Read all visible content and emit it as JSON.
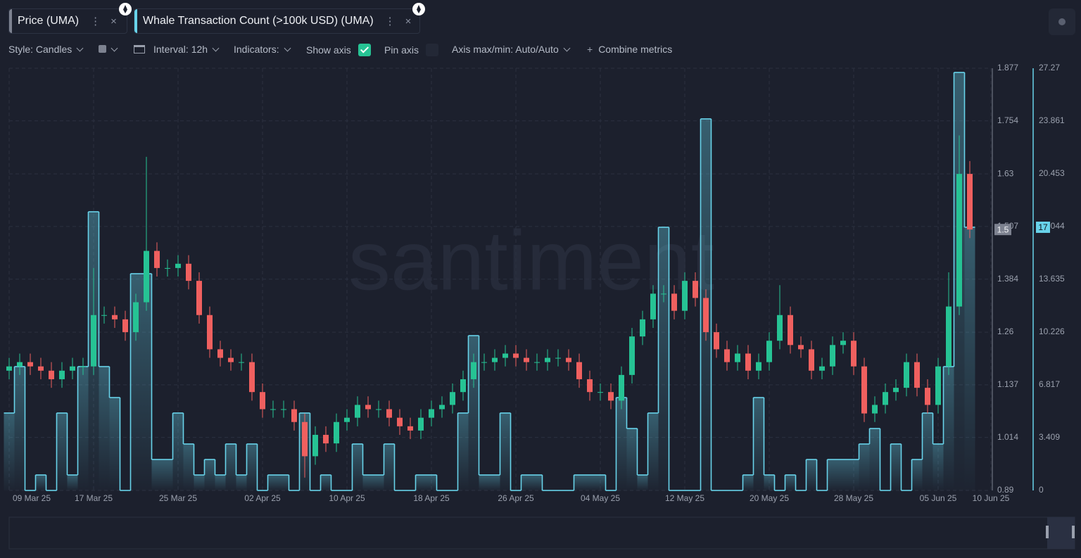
{
  "toolbar": {
    "style": "Style: Candles",
    "interval": "Interval: 12h",
    "indicators": "Indicators:",
    "show_axis": "Show axis",
    "pin_axis": "Pin axis",
    "axis_maxmin": "Axis max/min: Auto/Auto",
    "combine": "Combine metrics"
  },
  "watermark": "santiment",
  "chart_data": {
    "type": "candlestick",
    "x": [
      "09 Mar 25",
      "10 Mar 25",
      "11 Mar 25",
      "12 Mar 25",
      "13 Mar 25",
      "14 Mar 25",
      "15 Mar 25",
      "16 Mar 25",
      "17 Mar 25",
      "18 Mar 25",
      "19 Mar 25",
      "20 Mar 25",
      "21 Mar 25",
      "22 Mar 25",
      "23 Mar 25",
      "24 Mar 25",
      "25 Mar 25",
      "26 Mar 25",
      "27 Mar 25",
      "28 Mar 25",
      "29 Mar 25",
      "30 Mar 25",
      "31 Mar 25",
      "01 Apr 25",
      "02 Apr 25",
      "03 Apr 25",
      "04 Apr 25",
      "05 Apr 25",
      "06 Apr 25",
      "07 Apr 25",
      "08 Apr 25",
      "09 Apr 25",
      "10 Apr 25",
      "11 Apr 25",
      "12 Apr 25",
      "13 Apr 25",
      "14 Apr 25",
      "15 Apr 25",
      "16 Apr 25",
      "17 Apr 25",
      "18 Apr 25",
      "19 Apr 25",
      "20 Apr 25",
      "21 Apr 25",
      "22 Apr 25",
      "23 Apr 25",
      "24 Apr 25",
      "25 Apr 25",
      "26 Apr 25",
      "27 Apr 25",
      "28 Apr 25",
      "29 Apr 25",
      "30 Apr 25",
      "01 May 25",
      "02 May 25",
      "03 May 25",
      "04 May 25",
      "05 May 25",
      "06 May 25",
      "07 May 25",
      "08 May 25",
      "09 May 25",
      "10 May 25",
      "11 May 25",
      "12 May 25",
      "13 May 25",
      "14 May 25",
      "15 May 25",
      "16 May 25",
      "17 May 25",
      "18 May 25",
      "19 May 25",
      "20 May 25",
      "21 May 25",
      "22 May 25",
      "23 May 25",
      "24 May 25",
      "25 May 25",
      "26 May 25",
      "27 May 25",
      "28 May 25",
      "29 May 25",
      "30 May 25",
      "31 May 25",
      "01 Jun 25",
      "02 Jun 25",
      "03 Jun 25",
      "04 Jun 25",
      "05 Jun 25",
      "06 Jun 25",
      "07 Jun 25",
      "08 Jun 25"
    ],
    "xlim": [
      "09 Mar 25",
      "10 Jun 25"
    ],
    "xticks": [
      "09 Mar 25",
      "17 Mar 25",
      "25 Mar 25",
      "02 Apr 25",
      "10 Apr 25",
      "18 Apr 25",
      "26 Apr 25",
      "04 May 25",
      "12 May 25",
      "20 May 25",
      "28 May 25",
      "05 Jun 25",
      "10 Jun 25"
    ],
    "ylim": [
      0.89,
      1.877
    ],
    "yticks": [
      0.89,
      1.014,
      1.137,
      1.26,
      1.384,
      1.507,
      1.63,
      1.754,
      1.877
    ],
    "y2lim": [
      0,
      27.27
    ],
    "y2ticks": [
      0,
      3.409,
      6.817,
      10.226,
      13.635,
      17.044,
      20.453,
      23.861,
      27.27
    ],
    "grid": true,
    "series": [
      {
        "name": "Price (UMA)",
        "type": "candlestick",
        "color": "#7d8290",
        "up_color": "#26c394",
        "down_color": "#f0605f",
        "last_label": 1.5,
        "open": [
          1.17,
          1.18,
          1.19,
          1.18,
          1.17,
          1.15,
          1.17,
          1.18,
          1.18,
          1.3,
          1.3,
          1.29,
          1.26,
          1.33,
          1.45,
          1.41,
          1.41,
          1.42,
          1.38,
          1.3,
          1.22,
          1.2,
          1.19,
          1.19,
          1.12,
          1.08,
          1.08,
          1.08,
          1.05,
          0.97,
          1.02,
          1.0,
          1.05,
          1.06,
          1.09,
          1.08,
          1.08,
          1.06,
          1.04,
          1.03,
          1.06,
          1.08,
          1.09,
          1.12,
          1.15,
          1.19,
          1.19,
          1.2,
          1.21,
          1.2,
          1.19,
          1.19,
          1.2,
          1.2,
          1.19,
          1.15,
          1.12,
          1.12,
          1.1,
          1.16,
          1.25,
          1.29,
          1.35,
          1.35,
          1.31,
          1.38,
          1.34,
          1.26,
          1.22,
          1.19,
          1.21,
          1.17,
          1.19,
          1.24,
          1.3,
          1.23,
          1.22,
          1.17,
          1.18,
          1.23,
          1.24,
          1.18,
          1.07,
          1.09,
          1.12,
          1.13,
          1.19,
          1.13,
          1.09,
          1.18,
          1.32,
          1.63
        ],
        "high": [
          1.2,
          1.21,
          1.21,
          1.2,
          1.19,
          1.19,
          1.2,
          1.2,
          1.41,
          1.32,
          1.32,
          1.31,
          1.35,
          1.67,
          1.47,
          1.43,
          1.44,
          1.44,
          1.4,
          1.32,
          1.24,
          1.22,
          1.21,
          1.21,
          1.14,
          1.1,
          1.1,
          1.1,
          1.07,
          1.04,
          1.04,
          1.07,
          1.08,
          1.11,
          1.11,
          1.1,
          1.1,
          1.08,
          1.06,
          1.08,
          1.1,
          1.11,
          1.14,
          1.17,
          1.21,
          1.21,
          1.22,
          1.23,
          1.23,
          1.22,
          1.21,
          1.22,
          1.22,
          1.22,
          1.21,
          1.17,
          1.14,
          1.14,
          1.18,
          1.27,
          1.31,
          1.37,
          1.37,
          1.37,
          1.4,
          1.4,
          1.36,
          1.28,
          1.24,
          1.23,
          1.23,
          1.21,
          1.26,
          1.37,
          1.32,
          1.25,
          1.24,
          1.2,
          1.25,
          1.26,
          1.26,
          1.2,
          1.11,
          1.14,
          1.15,
          1.21,
          1.21,
          1.15,
          1.2,
          1.4,
          1.72,
          1.66
        ],
        "low": [
          1.15,
          1.16,
          1.16,
          1.15,
          1.13,
          1.13,
          1.15,
          1.16,
          1.16,
          1.28,
          1.27,
          1.24,
          1.24,
          1.31,
          1.39,
          1.39,
          1.39,
          1.36,
          1.28,
          1.2,
          1.18,
          1.17,
          1.17,
          1.1,
          1.06,
          1.06,
          1.06,
          1.03,
          0.92,
          0.95,
          0.98,
          0.98,
          1.03,
          1.04,
          1.06,
          1.06,
          1.04,
          1.02,
          1.01,
          1.01,
          1.04,
          1.06,
          1.07,
          1.1,
          1.13,
          1.17,
          1.17,
          1.18,
          1.18,
          1.17,
          1.17,
          1.17,
          1.18,
          1.17,
          1.13,
          1.1,
          1.1,
          1.08,
          1.08,
          1.14,
          1.23,
          1.27,
          1.33,
          1.29,
          1.29,
          1.32,
          1.24,
          1.2,
          1.17,
          1.17,
          1.15,
          1.15,
          1.17,
          1.22,
          1.21,
          1.2,
          1.15,
          1.15,
          1.16,
          1.21,
          1.16,
          1.05,
          1.05,
          1.07,
          1.1,
          1.11,
          1.11,
          1.07,
          1.07,
          1.16,
          1.3,
          1.48
        ],
        "close": [
          1.18,
          1.19,
          1.18,
          1.17,
          1.15,
          1.17,
          1.18,
          1.18,
          1.3,
          1.3,
          1.29,
          1.26,
          1.33,
          1.45,
          1.41,
          1.41,
          1.42,
          1.38,
          1.3,
          1.22,
          1.2,
          1.19,
          1.19,
          1.12,
          1.08,
          1.08,
          1.08,
          1.05,
          0.97,
          1.02,
          1.0,
          1.05,
          1.06,
          1.09,
          1.08,
          1.08,
          1.06,
          1.04,
          1.03,
          1.06,
          1.08,
          1.09,
          1.12,
          1.15,
          1.19,
          1.19,
          1.2,
          1.21,
          1.2,
          1.19,
          1.19,
          1.2,
          1.2,
          1.19,
          1.15,
          1.12,
          1.12,
          1.1,
          1.16,
          1.25,
          1.29,
          1.35,
          1.35,
          1.31,
          1.38,
          1.34,
          1.26,
          1.22,
          1.19,
          1.21,
          1.17,
          1.19,
          1.24,
          1.3,
          1.23,
          1.22,
          1.17,
          1.18,
          1.23,
          1.24,
          1.18,
          1.07,
          1.09,
          1.12,
          1.13,
          1.19,
          1.13,
          1.09,
          1.18,
          1.32,
          1.63,
          1.5
        ]
      },
      {
        "name": "Whale Transaction Count (>100k USD) (UMA)",
        "type": "step",
        "axis": "y2",
        "color": "#68d3ea",
        "last_label": 17,
        "values": [
          5,
          8,
          0,
          1,
          0,
          5,
          1,
          8,
          18,
          8,
          6,
          0,
          14,
          14,
          2,
          2,
          5,
          3,
          1,
          2,
          1,
          3,
          1,
          3,
          0,
          1,
          1,
          0,
          5,
          0,
          1,
          0,
          0,
          3,
          1,
          1,
          3,
          0,
          0,
          1,
          1,
          0,
          0,
          5,
          10,
          1,
          1,
          5,
          0,
          1,
          1,
          0,
          0,
          0,
          1,
          1,
          1,
          0,
          6,
          4,
          1,
          5,
          17,
          0,
          0,
          0,
          24,
          0,
          0,
          0,
          1,
          6,
          1,
          0,
          1,
          0,
          2,
          0,
          2,
          2,
          2,
          3,
          4,
          0,
          3,
          0,
          2,
          5,
          3,
          8,
          27,
          17
        ]
      }
    ]
  }
}
